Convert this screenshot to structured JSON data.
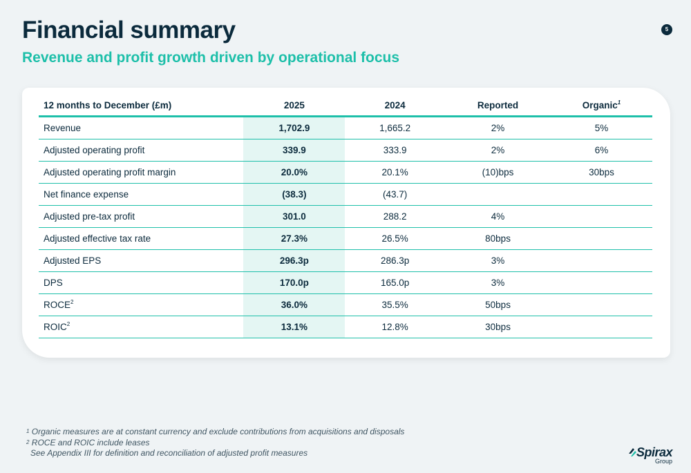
{
  "header": {
    "title": "Financial summary",
    "subtitle": "Revenue and profit growth driven by operational focus",
    "page_number": "5"
  },
  "table": {
    "headers": {
      "label": "12 months to December (£m)",
      "y2025": "2025",
      "y2024": "2024",
      "reported": "Reported",
      "organic": "Organic",
      "organic_sup": "1"
    },
    "rows": [
      {
        "label": "Revenue",
        "sup": "",
        "v2025": "1,702.9",
        "v2024": "1,665.2",
        "reported": "2%",
        "organic": "5%"
      },
      {
        "label": "Adjusted operating profit",
        "sup": "",
        "v2025": "339.9",
        "v2024": "333.9",
        "reported": "2%",
        "organic": "6%"
      },
      {
        "label": "Adjusted operating profit margin",
        "sup": "",
        "v2025": "20.0%",
        "v2024": "20.1%",
        "reported": "(10)bps",
        "organic": "30bps"
      },
      {
        "label": "Net finance expense",
        "sup": "",
        "v2025": "(38.3)",
        "v2024": "(43.7)",
        "reported": "",
        "organic": ""
      },
      {
        "label": "Adjusted pre-tax profit",
        "sup": "",
        "v2025": "301.0",
        "v2024": "288.2",
        "reported": "4%",
        "organic": ""
      },
      {
        "label": "Adjusted effective tax rate",
        "sup": "",
        "v2025": "27.3%",
        "v2024": "26.5%",
        "reported": "80bps",
        "organic": ""
      },
      {
        "label": "Adjusted EPS",
        "sup": "",
        "v2025": "296.3p",
        "v2024": "286.3p",
        "reported": "3%",
        "organic": ""
      },
      {
        "label": "DPS",
        "sup": "",
        "v2025": "170.0p",
        "v2024": "165.0p",
        "reported": "3%",
        "organic": ""
      },
      {
        "label": "ROCE",
        "sup": "2",
        "v2025": "36.0%",
        "v2024": "35.5%",
        "reported": "50bps",
        "organic": ""
      },
      {
        "label": "ROIC",
        "sup": "2",
        "v2025": "13.1%",
        "v2024": "12.8%",
        "reported": "30bps",
        "organic": ""
      }
    ]
  },
  "footnotes": [
    {
      "sup": "1",
      "text": "Organic measures are at constant currency and exclude contributions from acquisitions and disposals"
    },
    {
      "sup": "2",
      "text": "ROCE and ROIC include leases"
    },
    {
      "sup": "",
      "text": "See Appendix III for definition and reconciliation of adjusted profit measures"
    }
  ],
  "logo": {
    "word": "Spirax",
    "sub": "Group"
  },
  "colors": {
    "navy": "#0b2a3c",
    "teal": "#1dbfa9",
    "highlight": "#e4f6f3",
    "background": "#eff3f5"
  }
}
